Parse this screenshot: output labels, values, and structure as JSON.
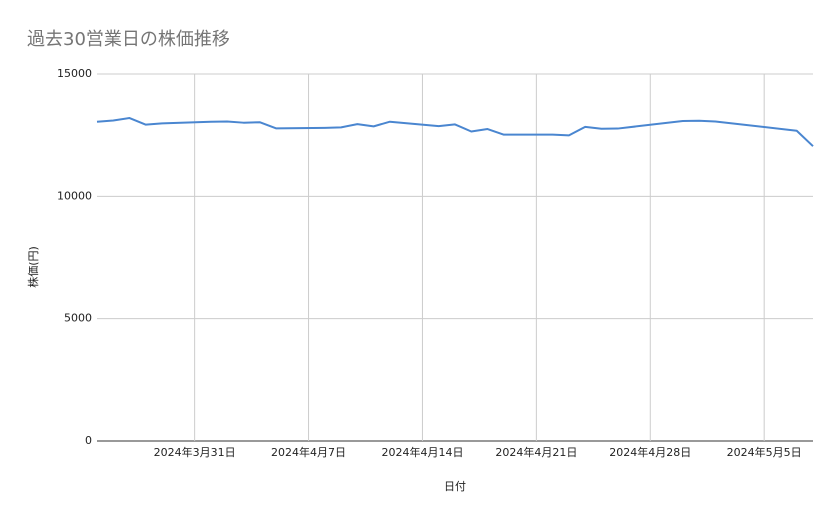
{
  "chart_data": {
    "type": "line",
    "title": "過去30営業日の株価推移",
    "x_label": "日付",
    "y_label": "株価(円)",
    "x": [
      "2024-03-25",
      "2024-03-26",
      "2024-03-27",
      "2024-03-28",
      "2024-03-29",
      "2024-04-01",
      "2024-04-02",
      "2024-04-03",
      "2024-04-04",
      "2024-04-05",
      "2024-04-08",
      "2024-04-09",
      "2024-04-10",
      "2024-04-11",
      "2024-04-12",
      "2024-04-15",
      "2024-04-16",
      "2024-04-17",
      "2024-04-18",
      "2024-04-19",
      "2024-04-22",
      "2024-04-23",
      "2024-04-24",
      "2024-04-25",
      "2024-04-26",
      "2024-04-30",
      "2024-05-01",
      "2024-05-02",
      "2024-05-07",
      "2024-05-08"
    ],
    "series": [
      {
        "name": "株価",
        "color": "#4a86d0",
        "values": [
          13050,
          13100,
          13200,
          12930,
          12980,
          13050,
          13060,
          13010,
          13030,
          12780,
          12800,
          12820,
          12950,
          12860,
          13050,
          12870,
          12940,
          12650,
          12750,
          12520,
          12520,
          12490,
          12840,
          12760,
          12770,
          13080,
          13090,
          13060,
          12680,
          12050
        ]
      }
    ],
    "xlim": [
      "2024-03-25",
      "2024-05-08"
    ],
    "xticks": [
      {
        "value": "2024-03-31",
        "label": "2024年3月31日"
      },
      {
        "value": "2024-04-07",
        "label": "2024年4月7日"
      },
      {
        "value": "2024-04-14",
        "label": "2024年4月14日"
      },
      {
        "value": "2024-04-21",
        "label": "2024年4月21日"
      },
      {
        "value": "2024-04-28",
        "label": "2024年4月28日"
      },
      {
        "value": "2024-05-05",
        "label": "2024年5月5日"
      }
    ],
    "ylim": [
      0,
      15000
    ],
    "yticks": [
      0,
      5000,
      10000,
      15000
    ],
    "grid": true
  }
}
